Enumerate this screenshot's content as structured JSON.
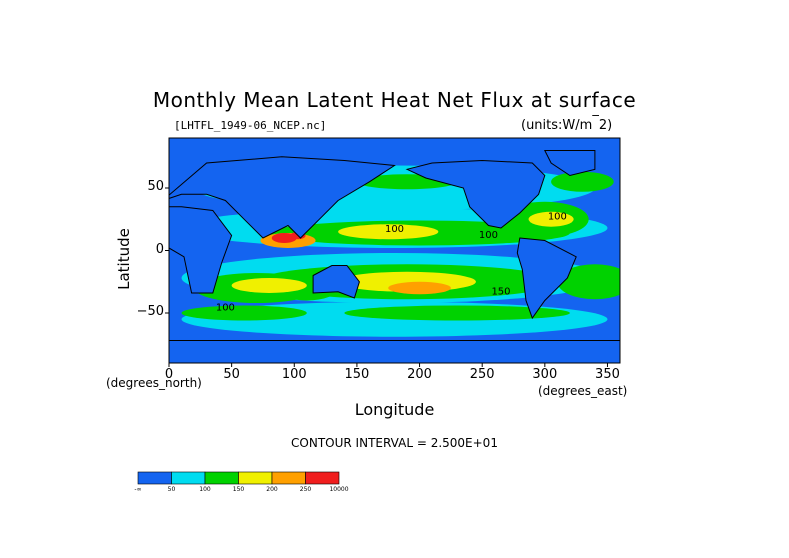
{
  "chart": {
    "title": "Monthly Mean Latent Heat Net Flux at surface",
    "file": "[LHTFL_1949-06_NCEP.nc]",
    "units": "(units:W/m^2)",
    "ylabel": "Latitude",
    "xlabel": "Longitude",
    "ylabel_units": "(degrees_north)",
    "xlabel_units": "(degrees_east)",
    "contour_interval": "CONTOUR INTERVAL = 2.500E+01"
  },
  "chart_data": {
    "type": "heatmap",
    "title": "Monthly Mean Latent Heat Net Flux at surface",
    "xlabel": "Longitude",
    "ylabel": "Latitude",
    "xlim": [
      0,
      360
    ],
    "ylim": [
      -90,
      90
    ],
    "x_ticks": [
      0,
      50,
      100,
      150,
      200,
      250,
      300,
      350
    ],
    "y_ticks": [
      -50,
      0,
      50
    ],
    "y_tick_labels": [
      "−50",
      "0",
      "50"
    ],
    "colorbar": {
      "levels": [
        "-∞",
        "50",
        "100",
        "150",
        "200",
        "250",
        "10000"
      ],
      "colors": [
        "#1464f0",
        "#00dcf0",
        "#00d200",
        "#f0f000",
        "#ffa000",
        "#f01e1e"
      ]
    },
    "labeled_contours": [
      {
        "label": "100",
        "lon": 180,
        "lat": 15
      },
      {
        "label": "100",
        "lon": 310,
        "lat": 25
      },
      {
        "label": "150",
        "lon": 265,
        "lat": -35
      },
      {
        "label": "100",
        "lon": 45,
        "lat": -48
      },
      {
        "label": "100",
        "lon": 255,
        "lat": 10
      }
    ]
  }
}
